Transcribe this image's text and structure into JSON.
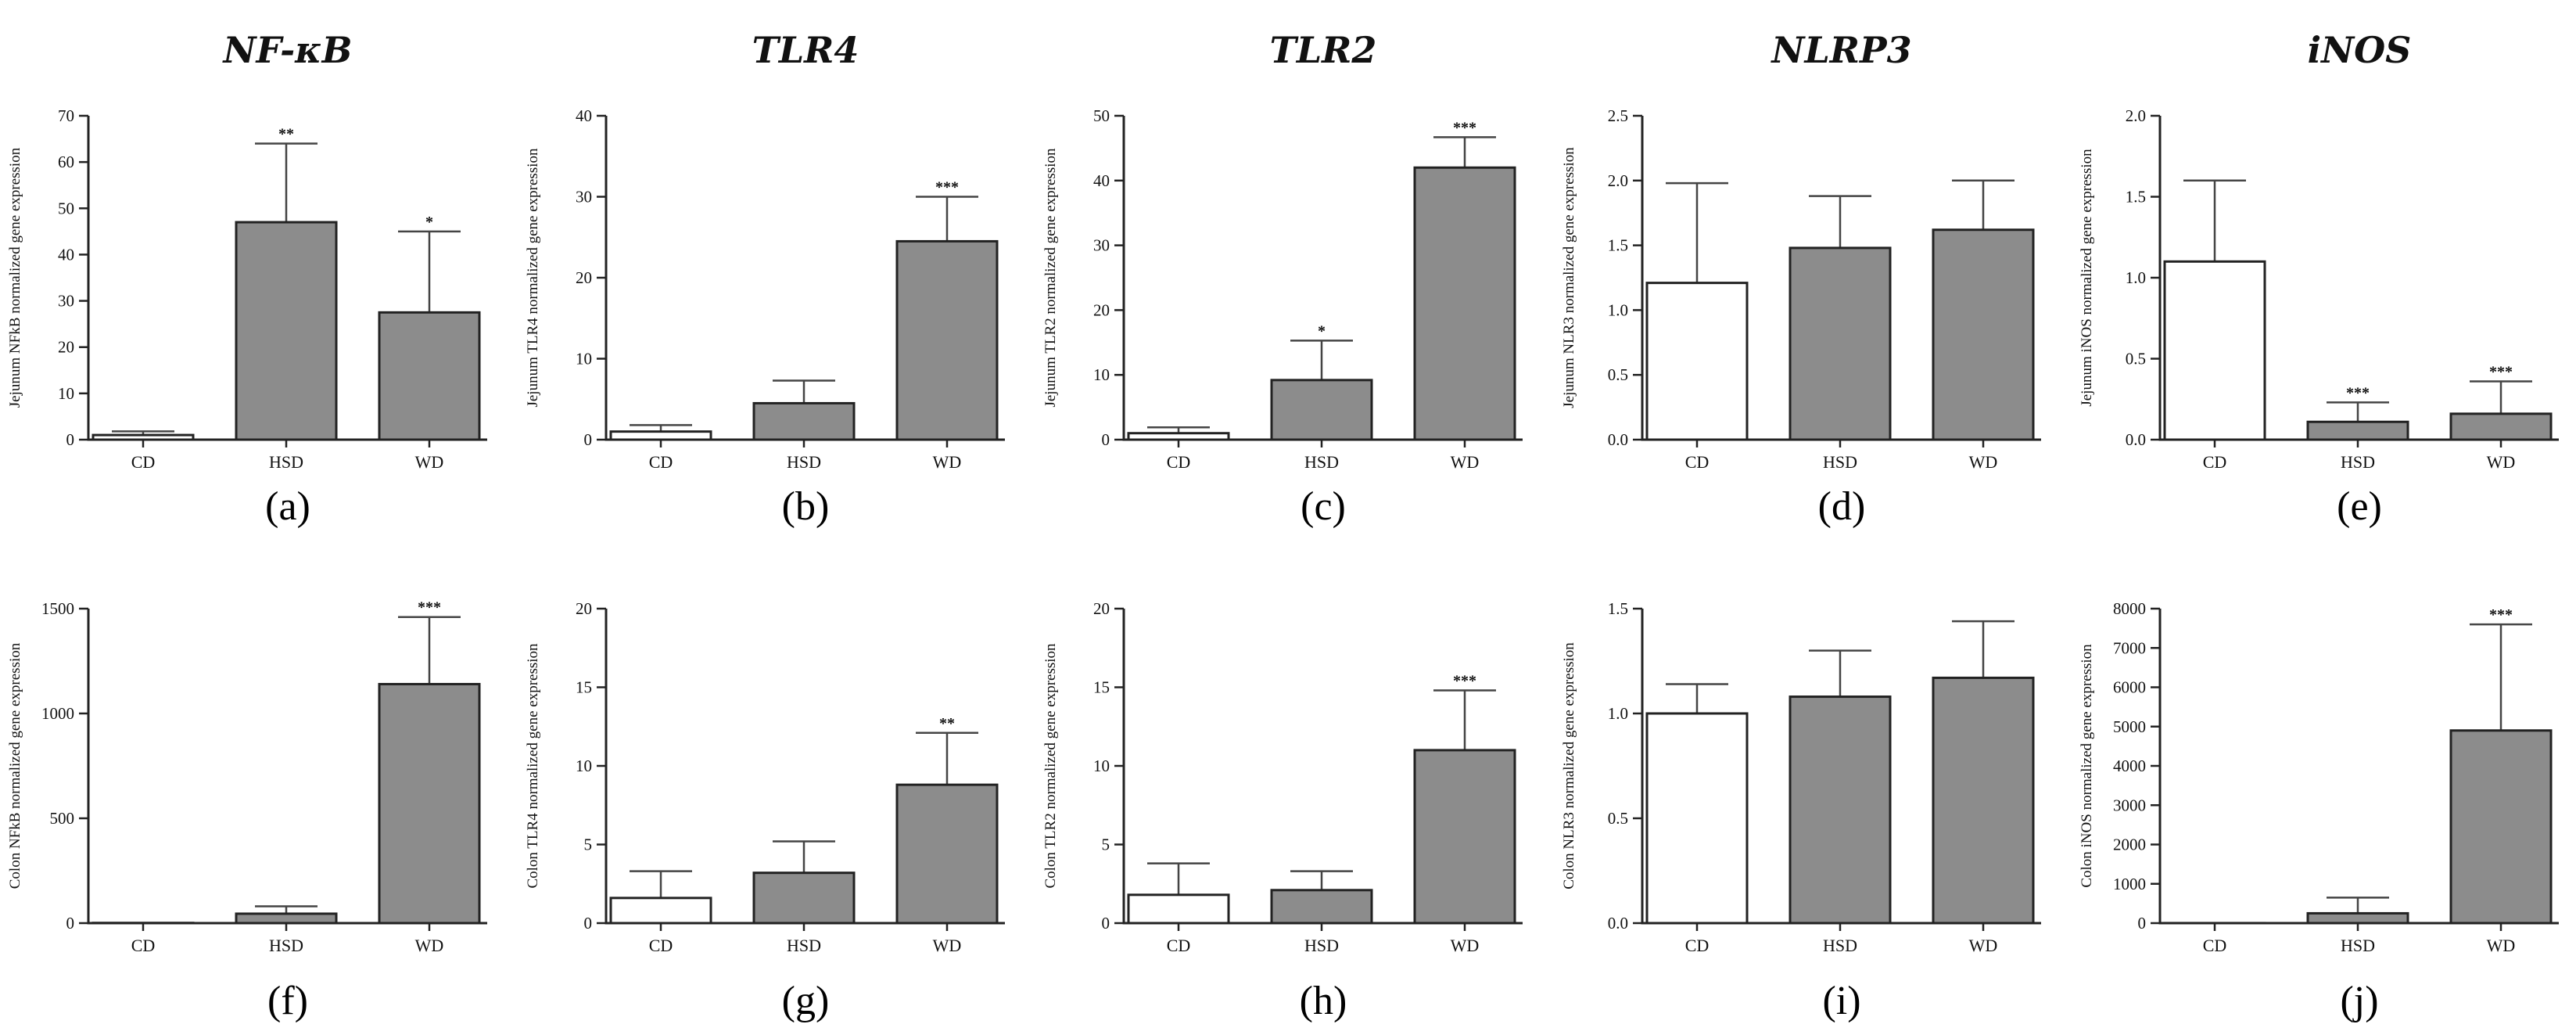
{
  "colors": {
    "cd_fill": "#ffffff",
    "treated_fill": "#8c8c8c",
    "axis": "#222222"
  },
  "chart_data": [
    {
      "id": "a",
      "panel_label": "(a)",
      "gene": "NF-κB",
      "tissue": "Jejunum",
      "type": "bar",
      "title": "NF-κB",
      "xlabel": "",
      "ylabel": "Jejunum NFkB normalized gene expression",
      "ylim": [
        0,
        70
      ],
      "yticks": [
        0,
        10,
        20,
        30,
        40,
        50,
        60,
        70
      ],
      "categories": [
        "CD",
        "HSD",
        "WD"
      ],
      "values": [
        1,
        47,
        27.5
      ],
      "errors": [
        0.8,
        17,
        17.5
      ],
      "significance": [
        "",
        "**",
        "*"
      ]
    },
    {
      "id": "b",
      "panel_label": "(b)",
      "gene": "TLR4",
      "tissue": "Jejunum",
      "type": "bar",
      "title": "TLR4",
      "xlabel": "",
      "ylabel": "Jejunum TLR4 normalized gene expression",
      "ylim": [
        0,
        40
      ],
      "yticks": [
        0,
        10,
        20,
        30,
        40
      ],
      "categories": [
        "CD",
        "HSD",
        "WD"
      ],
      "values": [
        1,
        4.5,
        24.5
      ],
      "errors": [
        0.8,
        2.8,
        5.5
      ],
      "significance": [
        "",
        "",
        "***"
      ]
    },
    {
      "id": "c",
      "panel_label": "(c)",
      "gene": "TLR2",
      "tissue": "Jejunum",
      "type": "bar",
      "title": "TLR2",
      "xlabel": "",
      "ylabel": "Jejunum TLR2 normalized gene expression",
      "ylim": [
        0,
        50
      ],
      "yticks": [
        0,
        10,
        20,
        30,
        40,
        50
      ],
      "categories": [
        "CD",
        "HSD",
        "WD"
      ],
      "values": [
        1,
        9.2,
        42
      ],
      "errors": [
        0.9,
        6.1,
        4.7
      ],
      "significance": [
        "",
        "*",
        "***"
      ]
    },
    {
      "id": "d",
      "panel_label": "(d)",
      "gene": "NLRP3",
      "tissue": "Jejunum",
      "type": "bar",
      "title": "NLRP3",
      "xlabel": "",
      "ylabel": "Jejunum NLR3 normalized gene expression",
      "ylim": [
        0,
        2.5
      ],
      "yticks": [
        "0.0",
        "0.5",
        "1.0",
        "1.5",
        "2.0",
        "2.5"
      ],
      "categories": [
        "CD",
        "HSD",
        "WD"
      ],
      "values": [
        1.21,
        1.48,
        1.62
      ],
      "errors": [
        0.77,
        0.4,
        0.38
      ],
      "significance": [
        "",
        "",
        ""
      ]
    },
    {
      "id": "e",
      "panel_label": "(e)",
      "gene": "iNOS",
      "tissue": "Jejunum",
      "type": "bar",
      "title": "iNOS",
      "xlabel": "",
      "ylabel": "Jejunum iNOS normalized gene expression",
      "ylim": [
        0,
        2.0
      ],
      "yticks": [
        "0.0",
        "0.5",
        "1.0",
        "1.5",
        "2.0"
      ],
      "categories": [
        "CD",
        "HSD",
        "WD"
      ],
      "values": [
        1.1,
        0.11,
        0.16
      ],
      "errors": [
        0.5,
        0.12,
        0.2
      ],
      "significance": [
        "",
        "***",
        "***"
      ]
    },
    {
      "id": "f",
      "panel_label": "(f)",
      "gene": "NF-κB",
      "tissue": "Colon",
      "type": "bar",
      "title": "",
      "xlabel": "",
      "ylabel": "Colon NFkB normalized gene expression",
      "ylim": [
        0,
        1500
      ],
      "yticks": [
        0,
        500,
        1000,
        1500
      ],
      "categories": [
        "CD",
        "HSD",
        "WD"
      ],
      "values": [
        1,
        45,
        1140
      ],
      "errors": [
        0,
        35,
        320
      ],
      "significance": [
        "",
        "",
        "***"
      ]
    },
    {
      "id": "g",
      "panel_label": "(g)",
      "gene": "TLR4",
      "tissue": "Colon",
      "type": "bar",
      "title": "",
      "xlabel": "",
      "ylabel": "Colon TLR4 normalized gene expression",
      "ylim": [
        0,
        20
      ],
      "yticks": [
        0,
        5,
        10,
        15,
        20
      ],
      "categories": [
        "CD",
        "HSD",
        "WD"
      ],
      "values": [
        1.6,
        3.2,
        8.8
      ],
      "errors": [
        1.7,
        2.0,
        3.3
      ],
      "significance": [
        "",
        "",
        "**"
      ]
    },
    {
      "id": "h",
      "panel_label": "(h)",
      "gene": "TLR2",
      "tissue": "Colon",
      "type": "bar",
      "title": "",
      "xlabel": "",
      "ylabel": "Colon TLR2 normalized gene expression",
      "ylim": [
        0,
        20
      ],
      "yticks": [
        0,
        5,
        10,
        15,
        20
      ],
      "categories": [
        "CD",
        "HSD",
        "WD"
      ],
      "values": [
        1.8,
        2.1,
        11
      ],
      "errors": [
        2.0,
        1.2,
        3.8
      ],
      "significance": [
        "",
        "",
        "***"
      ]
    },
    {
      "id": "i",
      "panel_label": "(i)",
      "gene": "NLRP3",
      "tissue": "Colon",
      "type": "bar",
      "title": "",
      "xlabel": "",
      "ylabel": "Colon NLR3 normalized gene expression",
      "ylim": [
        0,
        1.5
      ],
      "yticks": [
        "0.0",
        "0.5",
        "1.0",
        "1.5"
      ],
      "categories": [
        "CD",
        "HSD",
        "WD"
      ],
      "values": [
        1.0,
        1.08,
        1.17
      ],
      "errors": [
        0.14,
        0.22,
        0.27
      ],
      "significance": [
        "",
        "",
        ""
      ]
    },
    {
      "id": "j",
      "panel_label": "(j)",
      "gene": "iNOS",
      "tissue": "Colon",
      "type": "bar",
      "title": "",
      "xlabel": "",
      "ylabel": "Colon iNOS normalized gene expression",
      "ylim": [
        0,
        8000
      ],
      "yticks": [
        0,
        1000,
        2000,
        3000,
        4000,
        5000,
        6000,
        7000,
        8000
      ],
      "categories": [
        "CD",
        "HSD",
        "WD"
      ],
      "values": [
        1,
        250,
        4900
      ],
      "errors": [
        0,
        400,
        2700
      ],
      "significance": [
        "",
        "",
        "***"
      ]
    }
  ]
}
